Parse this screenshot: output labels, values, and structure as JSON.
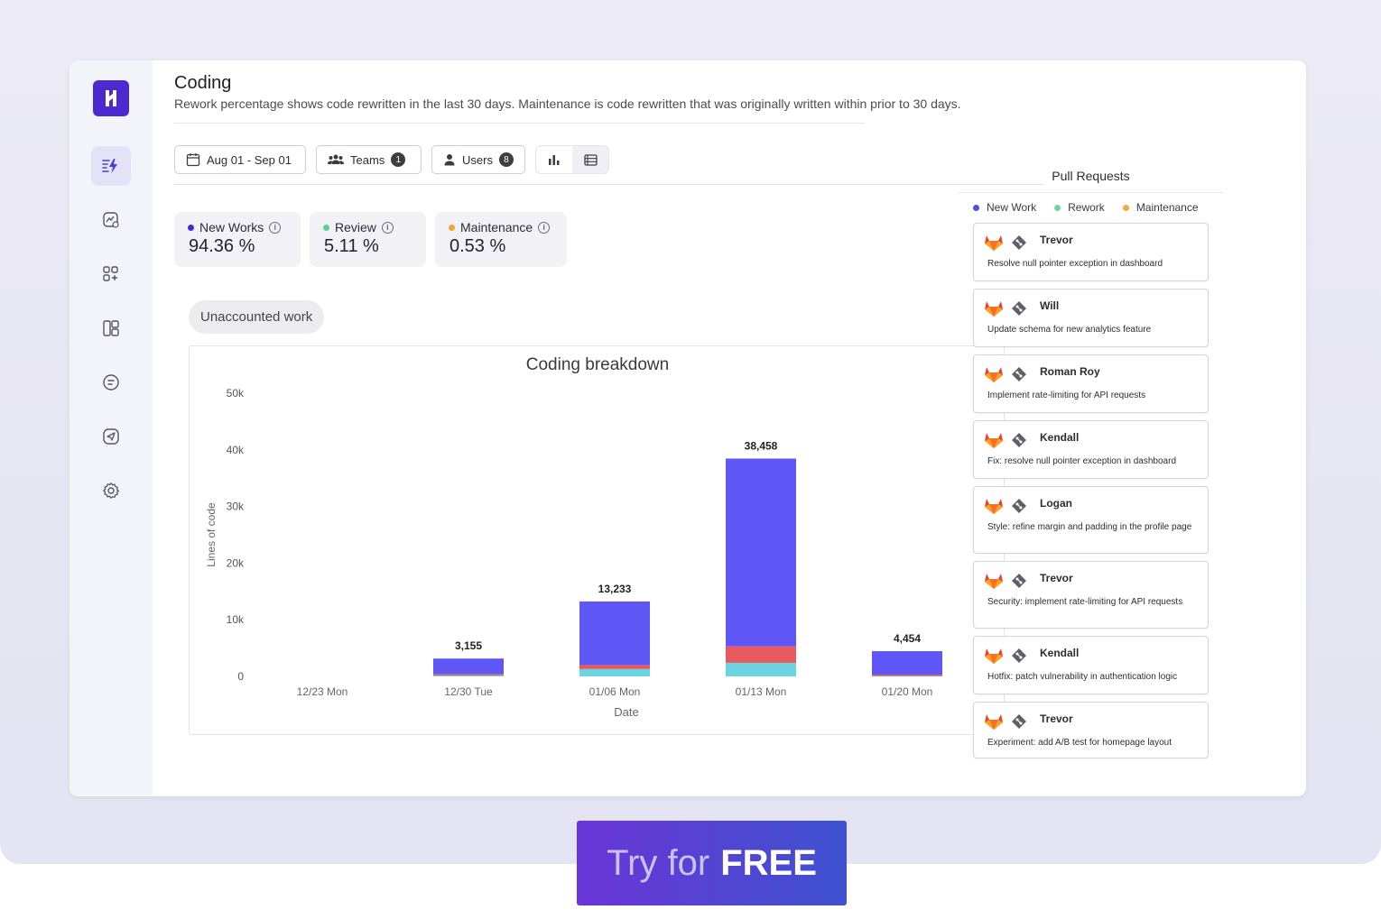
{
  "page": {
    "title": "Coding",
    "subtitle": "Rework percentage shows code rewritten in the last 30 days. Maintenance is code rewritten that was originally written within prior to 30 days."
  },
  "sidebar": {
    "items": [
      "lightning-icon",
      "chart-star-icon",
      "apps-add-icon",
      "layout-icon",
      "face-icon",
      "send-icon",
      "gear-icon"
    ]
  },
  "filters": {
    "date_range": "Aug 01 - Sep 01",
    "teams_label": "Teams",
    "teams_count": "1",
    "users_label": "Users",
    "users_count": "8"
  },
  "stats": [
    {
      "label": "New Works",
      "value": "94.36 %",
      "color": "#3b2dd0"
    },
    {
      "label": "Review",
      "value": "5.11 %",
      "color": "#5fcf96"
    },
    {
      "label": "Maintenance",
      "value": "0.53 %",
      "color": "#f2a535"
    }
  ],
  "unaccounted_label": "Unaccounted work",
  "chart_data": {
    "type": "bar",
    "stacked": true,
    "title": "Coding breakdown",
    "xlabel": "Date",
    "ylabel": "Lines of code",
    "ylim": [
      0,
      50000
    ],
    "yticks": [
      "0",
      "10k",
      "20k",
      "30k",
      "40k",
      "50k"
    ],
    "categories": [
      "12/23 Mon",
      "12/30 Tue",
      "01/06 Mon",
      "01/13 Mon",
      "01/20 Mon"
    ],
    "totals": [
      "",
      "3,155",
      "13,233",
      "38,458",
      "4,454"
    ],
    "series": [
      {
        "values": [
          0,
          300,
          1300,
          2400,
          250
        ],
        "color": "#6ad4e0"
      },
      {
        "values": [
          0,
          120,
          700,
          2900,
          50
        ],
        "color": "#e85a60"
      },
      {
        "values": [
          0,
          2735,
          11233,
          33158,
          4154
        ],
        "color": "#5e57f6"
      }
    ]
  },
  "pull_requests": {
    "title": "Pull Requests",
    "legend": [
      {
        "label": "New Work",
        "color": "#4b52de"
      },
      {
        "label": "Rework",
        "color": "#6fd69e"
      },
      {
        "label": "Maintenance",
        "color": "#f5a940"
      }
    ],
    "items": [
      {
        "author": "Trevor",
        "text": "Resolve null pointer exception in dashboard"
      },
      {
        "author": "Will",
        "text": "Update schema for new analytics feature"
      },
      {
        "author": "Roman Roy",
        "text": "Implement rate-limiting for API requests"
      },
      {
        "author": "Kendall",
        "text": "Fix: resolve null pointer exception in dashboard"
      },
      {
        "author": "Logan",
        "text": "Style: refine margin and padding in the profile page"
      },
      {
        "author": "Trevor",
        "text": "Security: implement rate-limiting for API requests"
      },
      {
        "author": "Kendall",
        "text": "Hotfix: patch vulnerability in authentication logic"
      },
      {
        "author": "Trevor",
        "text": "Experiment: add A/B test for homepage layout"
      }
    ]
  },
  "cta": {
    "prefix": "Try for",
    "emphasis": "FREE"
  }
}
